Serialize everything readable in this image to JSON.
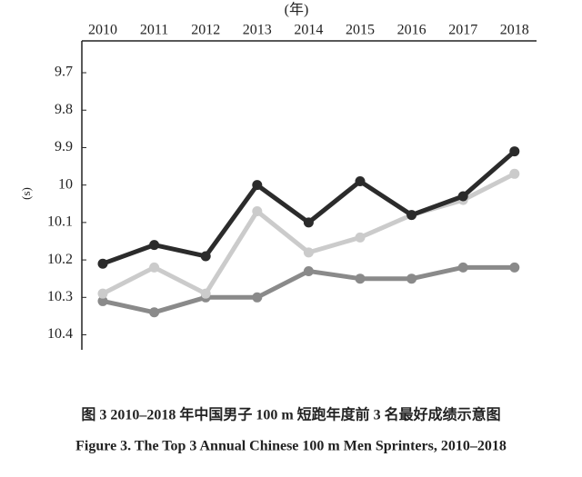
{
  "chart_data": {
    "type": "line",
    "x_label": "(年)",
    "y_label": "(s)",
    "categories": [
      "2010",
      "2011",
      "2012",
      "2013",
      "2014",
      "2015",
      "2016",
      "2017",
      "2018"
    ],
    "series": [
      {
        "color": "#8a8a8a",
        "values": [
          10.31,
          10.34,
          10.3,
          10.3,
          10.23,
          10.25,
          10.25,
          10.22,
          10.22
        ]
      },
      {
        "color": "#cbcbcb",
        "values": [
          10.29,
          10.22,
          10.29,
          10.07,
          10.18,
          10.14,
          10.08,
          10.04,
          9.97
        ]
      },
      {
        "color": "#2b2b2b",
        "values": [
          10.21,
          10.16,
          10.19,
          10.0,
          10.1,
          9.99,
          10.08,
          10.03,
          9.91
        ]
      }
    ],
    "ylim": [
      10.44,
      9.615
    ],
    "yticks": [
      9.7,
      9.8,
      9.9,
      10,
      10.1,
      10.2,
      10.3,
      10.4
    ],
    "caption_cn": "图 3   2010–2018 年中国男子 100  m 短跑年度前 3 名最好成绩示意图",
    "caption_en": "Figure 3.  The Top 3 Annual Chinese 100 m Men Sprinters, 2010–2018"
  }
}
